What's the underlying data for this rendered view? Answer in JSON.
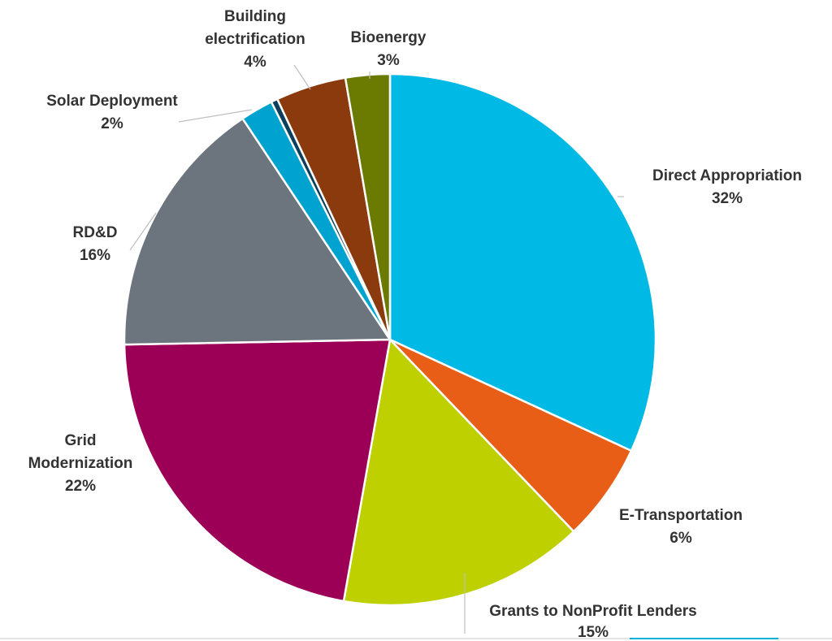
{
  "chart_data": {
    "type": "pie",
    "start_angle_deg": 0,
    "direction": "clockwise",
    "slices": [
      {
        "label": "Direct Appropriation",
        "value": 32,
        "pct_label": "32%",
        "color": "#00b9e4"
      },
      {
        "label": "E-Transportation",
        "value": 6,
        "pct_label": "6%",
        "color": "#e95e16"
      },
      {
        "label": "Grants to NonProfit Lenders",
        "value": 15,
        "pct_label": "15%",
        "color": "#bed000"
      },
      {
        "label": "Grid Modernization",
        "value": 22,
        "pct_label": "22%",
        "color": "#9b0056"
      },
      {
        "label": "RD&D",
        "value": 16,
        "pct_label": "16%",
        "color": "#6c757d"
      },
      {
        "label": "Solar Deployment",
        "value": 2,
        "pct_label": "2%",
        "color": "#00a3cf"
      },
      {
        "label": "",
        "value": 0.4,
        "pct_label": "",
        "color": "#0b3f5c"
      },
      {
        "label": "Building electrification",
        "value": 4.3,
        "pct_label": "4%",
        "color": "#8a3a0c"
      },
      {
        "label": "Bioenergy",
        "value": 2.7,
        "pct_label": "3%",
        "color": "#6b7a00"
      }
    ]
  }
}
